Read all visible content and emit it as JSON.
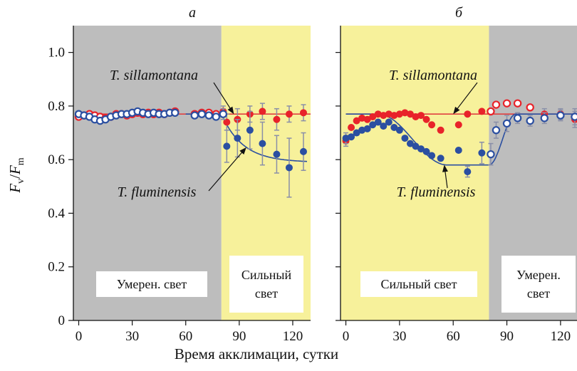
{
  "figure": {
    "xlabel": "Время акклимации, сутки",
    "ylabel_main": "F",
    "ylabel_sub_num": "v",
    "ylabel_sep": "/",
    "ylabel_sub_den": "m",
    "y_ticks": [
      "0",
      "0.2",
      "0.4",
      "0.6",
      "0.8",
      "1.0"
    ],
    "colors": {
      "gray_bg": "#bdbdbd",
      "yellow_bg": "#f7f19b",
      "red": "#e8232a",
      "blue": "#2b4fa1",
      "red_line": "#e04040",
      "blue_line": "#2b4fa1",
      "errorbar": "#8a8fa8"
    }
  },
  "chart_data": [
    {
      "type": "scatter",
      "panel_label": "а",
      "xlim": [
        -3,
        130
      ],
      "ylim": [
        0,
        1.1
      ],
      "x_ticks": [
        0,
        30,
        60,
        90,
        120
      ],
      "y_ticks": [
        0,
        0.2,
        0.4,
        0.6,
        0.8,
        1.0
      ],
      "regions": [
        {
          "x0": -3,
          "x1": 80,
          "fill": "gray",
          "label_lines": [
            "Умерен. свет"
          ]
        },
        {
          "x0": 80,
          "x1": 130,
          "fill": "yellow",
          "label_lines": [
            "Сильный",
            "свет"
          ]
        }
      ],
      "species_labels": [
        {
          "text": "T. sillamontana",
          "series": "T. sillamontana"
        },
        {
          "text": "T. fluminensis",
          "series": "T. fluminensis"
        }
      ],
      "series": [
        {
          "name": "T. sillamontana",
          "color": "red",
          "fit": {
            "type": "flat",
            "y": 0.77,
            "x0": 0,
            "x1": 130
          },
          "points": [
            {
              "x": 0,
              "y": 0.76,
              "open": true
            },
            {
              "x": 3,
              "y": 0.765,
              "open": true
            },
            {
              "x": 6,
              "y": 0.77,
              "open": true
            },
            {
              "x": 9,
              "y": 0.765,
              "open": true
            },
            {
              "x": 12,
              "y": 0.76,
              "open": true
            },
            {
              "x": 15,
              "y": 0.755,
              "open": true
            },
            {
              "x": 18,
              "y": 0.76,
              "open": true
            },
            {
              "x": 21,
              "y": 0.77,
              "open": true
            },
            {
              "x": 24,
              "y": 0.77,
              "open": true
            },
            {
              "x": 27,
              "y": 0.765,
              "open": true
            },
            {
              "x": 30,
              "y": 0.77,
              "open": true
            },
            {
              "x": 33,
              "y": 0.775,
              "open": true
            },
            {
              "x": 36,
              "y": 0.77,
              "open": true
            },
            {
              "x": 39,
              "y": 0.775,
              "open": true
            },
            {
              "x": 42,
              "y": 0.77,
              "open": true
            },
            {
              "x": 45,
              "y": 0.775,
              "open": true
            },
            {
              "x": 48,
              "y": 0.77,
              "open": true
            },
            {
              "x": 51,
              "y": 0.775,
              "open": true
            },
            {
              "x": 54,
              "y": 0.78,
              "open": true
            },
            {
              "x": 65,
              "y": 0.77,
              "open": true
            },
            {
              "x": 69,
              "y": 0.775,
              "open": true
            },
            {
              "x": 73,
              "y": 0.775,
              "open": true
            },
            {
              "x": 77,
              "y": 0.77,
              "open": true
            },
            {
              "x": 81,
              "y": 0.78,
              "open": false,
              "err": 0.02
            },
            {
              "x": 83,
              "y": 0.74,
              "open": false,
              "err": 0.03
            },
            {
              "x": 89,
              "y": 0.75,
              "open": false,
              "err": 0.04
            },
            {
              "x": 96,
              "y": 0.77,
              "open": false,
              "err": 0.03
            },
            {
              "x": 103,
              "y": 0.78,
              "open": false,
              "err": 0.03
            },
            {
              "x": 111,
              "y": 0.75,
              "open": false,
              "err": 0.04
            },
            {
              "x": 118,
              "y": 0.77,
              "open": false,
              "err": 0.03
            },
            {
              "x": 126,
              "y": 0.775,
              "open": false,
              "err": 0.03
            }
          ]
        },
        {
          "name": "T. fluminensis",
          "color": "blue",
          "fit": {
            "type": "decay",
            "y0": 0.77,
            "yinf": 0.59,
            "x_start": 80,
            "tau": 12,
            "x0": 60,
            "x1": 128
          },
          "points": [
            {
              "x": 0,
              "y": 0.77,
              "open": true
            },
            {
              "x": 3,
              "y": 0.765,
              "open": true
            },
            {
              "x": 6,
              "y": 0.76,
              "open": true
            },
            {
              "x": 9,
              "y": 0.75,
              "open": true
            },
            {
              "x": 12,
              "y": 0.745,
              "open": true
            },
            {
              "x": 15,
              "y": 0.75,
              "open": true
            },
            {
              "x": 18,
              "y": 0.76,
              "open": true
            },
            {
              "x": 21,
              "y": 0.765,
              "open": true
            },
            {
              "x": 24,
              "y": 0.77,
              "open": true
            },
            {
              "x": 27,
              "y": 0.77,
              "open": true
            },
            {
              "x": 30,
              "y": 0.775,
              "open": true
            },
            {
              "x": 33,
              "y": 0.78,
              "open": true
            },
            {
              "x": 36,
              "y": 0.775,
              "open": true
            },
            {
              "x": 39,
              "y": 0.77,
              "open": true
            },
            {
              "x": 42,
              "y": 0.775,
              "open": true
            },
            {
              "x": 45,
              "y": 0.77,
              "open": true
            },
            {
              "x": 48,
              "y": 0.77,
              "open": true
            },
            {
              "x": 51,
              "y": 0.775,
              "open": true
            },
            {
              "x": 54,
              "y": 0.775,
              "open": true
            },
            {
              "x": 65,
              "y": 0.765,
              "open": true
            },
            {
              "x": 69,
              "y": 0.77,
              "open": true
            },
            {
              "x": 73,
              "y": 0.765,
              "open": true
            },
            {
              "x": 77,
              "y": 0.76,
              "open": true
            },
            {
              "x": 81,
              "y": 0.77,
              "open": true,
              "err": 0.02
            },
            {
              "x": 83,
              "y": 0.65,
              "open": false,
              "err": 0.06
            },
            {
              "x": 89,
              "y": 0.68,
              "open": false,
              "err": 0.07
            },
            {
              "x": 96,
              "y": 0.71,
              "open": false,
              "err": 0.07
            },
            {
              "x": 103,
              "y": 0.66,
              "open": false,
              "err": 0.08
            },
            {
              "x": 111,
              "y": 0.62,
              "open": false,
              "err": 0.07
            },
            {
              "x": 118,
              "y": 0.57,
              "open": false,
              "err": 0.11
            },
            {
              "x": 126,
              "y": 0.63,
              "open": false,
              "err": 0.07
            }
          ]
        }
      ]
    },
    {
      "type": "scatter",
      "panel_label": "б",
      "xlim": [
        -3,
        130
      ],
      "ylim": [
        0,
        1.1
      ],
      "x_ticks": [
        0,
        30,
        60,
        90,
        120
      ],
      "y_ticks": [
        0,
        0.2,
        0.4,
        0.6,
        0.8,
        1.0
      ],
      "regions": [
        {
          "x0": -3,
          "x1": 80,
          "fill": "yellow",
          "label_lines": [
            "Сильный свет"
          ]
        },
        {
          "x0": 80,
          "x1": 130,
          "fill": "gray",
          "label_lines": [
            "Умерен.",
            "свет"
          ]
        }
      ],
      "species_labels": [
        {
          "text": "T. sillamontana",
          "series": "T. sillamontana"
        },
        {
          "text": "T. fluminensis",
          "series": "T. fluminensis"
        }
      ],
      "series": [
        {
          "name": "T. sillamontana",
          "color": "red",
          "fit": {
            "type": "flat",
            "y": 0.77,
            "x0": 0,
            "x1": 130
          },
          "points": [
            {
              "x": 0,
              "y": 0.67,
              "open": false,
              "err": 0.02
            },
            {
              "x": 3,
              "y": 0.72,
              "open": false
            },
            {
              "x": 6,
              "y": 0.745,
              "open": false
            },
            {
              "x": 9,
              "y": 0.755,
              "open": false
            },
            {
              "x": 12,
              "y": 0.75,
              "open": false
            },
            {
              "x": 15,
              "y": 0.76,
              "open": false
            },
            {
              "x": 18,
              "y": 0.77,
              "open": false
            },
            {
              "x": 21,
              "y": 0.765,
              "open": false
            },
            {
              "x": 24,
              "y": 0.77,
              "open": false
            },
            {
              "x": 27,
              "y": 0.765,
              "open": false
            },
            {
              "x": 30,
              "y": 0.77,
              "open": false
            },
            {
              "x": 33,
              "y": 0.775,
              "open": false
            },
            {
              "x": 36,
              "y": 0.77,
              "open": false
            },
            {
              "x": 39,
              "y": 0.76,
              "open": false
            },
            {
              "x": 42,
              "y": 0.765,
              "open": false
            },
            {
              "x": 45,
              "y": 0.75,
              "open": false
            },
            {
              "x": 48,
              "y": 0.73,
              "open": false
            },
            {
              "x": 53,
              "y": 0.71,
              "open": false
            },
            {
              "x": 63,
              "y": 0.73,
              "open": false
            },
            {
              "x": 68,
              "y": 0.77,
              "open": false
            },
            {
              "x": 76,
              "y": 0.78,
              "open": false
            },
            {
              "x": 81,
              "y": 0.78,
              "open": true
            },
            {
              "x": 84,
              "y": 0.805,
              "open": true
            },
            {
              "x": 90,
              "y": 0.81,
              "open": true
            },
            {
              "x": 96,
              "y": 0.81,
              "open": true
            },
            {
              "x": 103,
              "y": 0.795,
              "open": true
            },
            {
              "x": 111,
              "y": 0.77,
              "open": false,
              "err": 0.02
            },
            {
              "x": 120,
              "y": 0.77,
              "open": false,
              "err": 0.02
            },
            {
              "x": 128,
              "y": 0.75,
              "open": false,
              "err": 0.03
            }
          ]
        },
        {
          "name": "T. fluminensis",
          "color": "blue",
          "fit": {
            "type": "dip",
            "y0": 0.77,
            "ymin": 0.58,
            "x0": 0,
            "x_dip_start": 18,
            "x_dip_end": 80,
            "x_recover": 95,
            "x1": 130
          },
          "points": [
            {
              "x": 0,
              "y": 0.68,
              "open": false,
              "err": 0.02
            },
            {
              "x": 3,
              "y": 0.685,
              "open": false
            },
            {
              "x": 6,
              "y": 0.7,
              "open": false
            },
            {
              "x": 9,
              "y": 0.71,
              "open": false
            },
            {
              "x": 12,
              "y": 0.715,
              "open": false
            },
            {
              "x": 15,
              "y": 0.73,
              "open": false
            },
            {
              "x": 18,
              "y": 0.74,
              "open": false
            },
            {
              "x": 21,
              "y": 0.725,
              "open": false
            },
            {
              "x": 24,
              "y": 0.74,
              "open": false
            },
            {
              "x": 27,
              "y": 0.72,
              "open": false
            },
            {
              "x": 30,
              "y": 0.71,
              "open": false
            },
            {
              "x": 33,
              "y": 0.68,
              "open": false
            },
            {
              "x": 36,
              "y": 0.66,
              "open": false
            },
            {
              "x": 39,
              "y": 0.65,
              "open": false
            },
            {
              "x": 42,
              "y": 0.64,
              "open": false
            },
            {
              "x": 45,
              "y": 0.63,
              "open": false
            },
            {
              "x": 48,
              "y": 0.615,
              "open": false
            },
            {
              "x": 53,
              "y": 0.605,
              "open": false
            },
            {
              "x": 63,
              "y": 0.635,
              "open": false
            },
            {
              "x": 68,
              "y": 0.555,
              "open": false,
              "err": 0.02
            },
            {
              "x": 76,
              "y": 0.625,
              "open": false,
              "err": 0.04
            },
            {
              "x": 81,
              "y": 0.62,
              "open": true,
              "err": 0.04
            },
            {
              "x": 84,
              "y": 0.71,
              "open": true,
              "err": 0.03
            },
            {
              "x": 90,
              "y": 0.735,
              "open": true,
              "err": 0.03
            },
            {
              "x": 96,
              "y": 0.755,
              "open": true,
              "err": 0.02
            },
            {
              "x": 103,
              "y": 0.745,
              "open": true,
              "err": 0.02
            },
            {
              "x": 111,
              "y": 0.755,
              "open": true,
              "err": 0.02
            },
            {
              "x": 120,
              "y": 0.765,
              "open": true,
              "err": 0.02
            },
            {
              "x": 128,
              "y": 0.76,
              "open": true,
              "err": 0.03
            }
          ]
        }
      ]
    }
  ]
}
